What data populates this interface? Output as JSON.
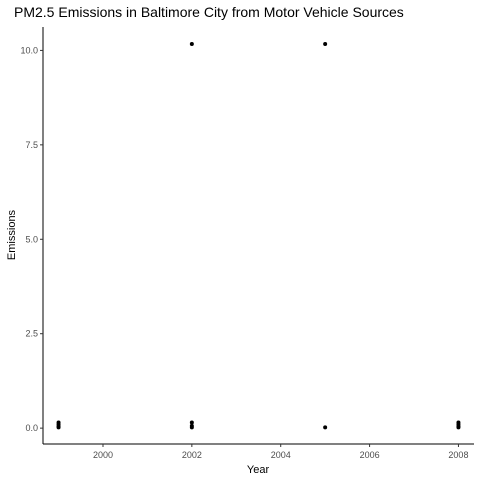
{
  "chart_data": {
    "type": "scatter",
    "title": "PM2.5 Emissions in Baltimore City from Motor Vehicle Sources",
    "xlabel": "Year",
    "ylabel": "Emissions",
    "xlim": [
      1998.65,
      2008.35
    ],
    "ylim": [
      -0.42,
      10.62
    ],
    "grid": false,
    "x_ticks": [
      2000,
      2002,
      2004,
      2006,
      2008
    ],
    "x_tick_labels": [
      "2000",
      "2002",
      "2004",
      "2006",
      "2008"
    ],
    "y_ticks": [
      0,
      2.5,
      5,
      7.5,
      10
    ],
    "y_tick_labels": [
      "0.0",
      "2.5",
      "5.0",
      "7.5",
      "10.0"
    ],
    "x": [
      1999,
      1999,
      1999,
      1999,
      2002,
      2002,
      2002,
      2002,
      2005,
      2005,
      2008,
      2008,
      2008,
      2008
    ],
    "y": [
      0.02,
      0.05,
      0.1,
      0.15,
      10.17,
      0.15,
      0.06,
      0.02,
      10.17,
      0.02,
      0.02,
      0.05,
      0.1,
      0.15
    ]
  }
}
